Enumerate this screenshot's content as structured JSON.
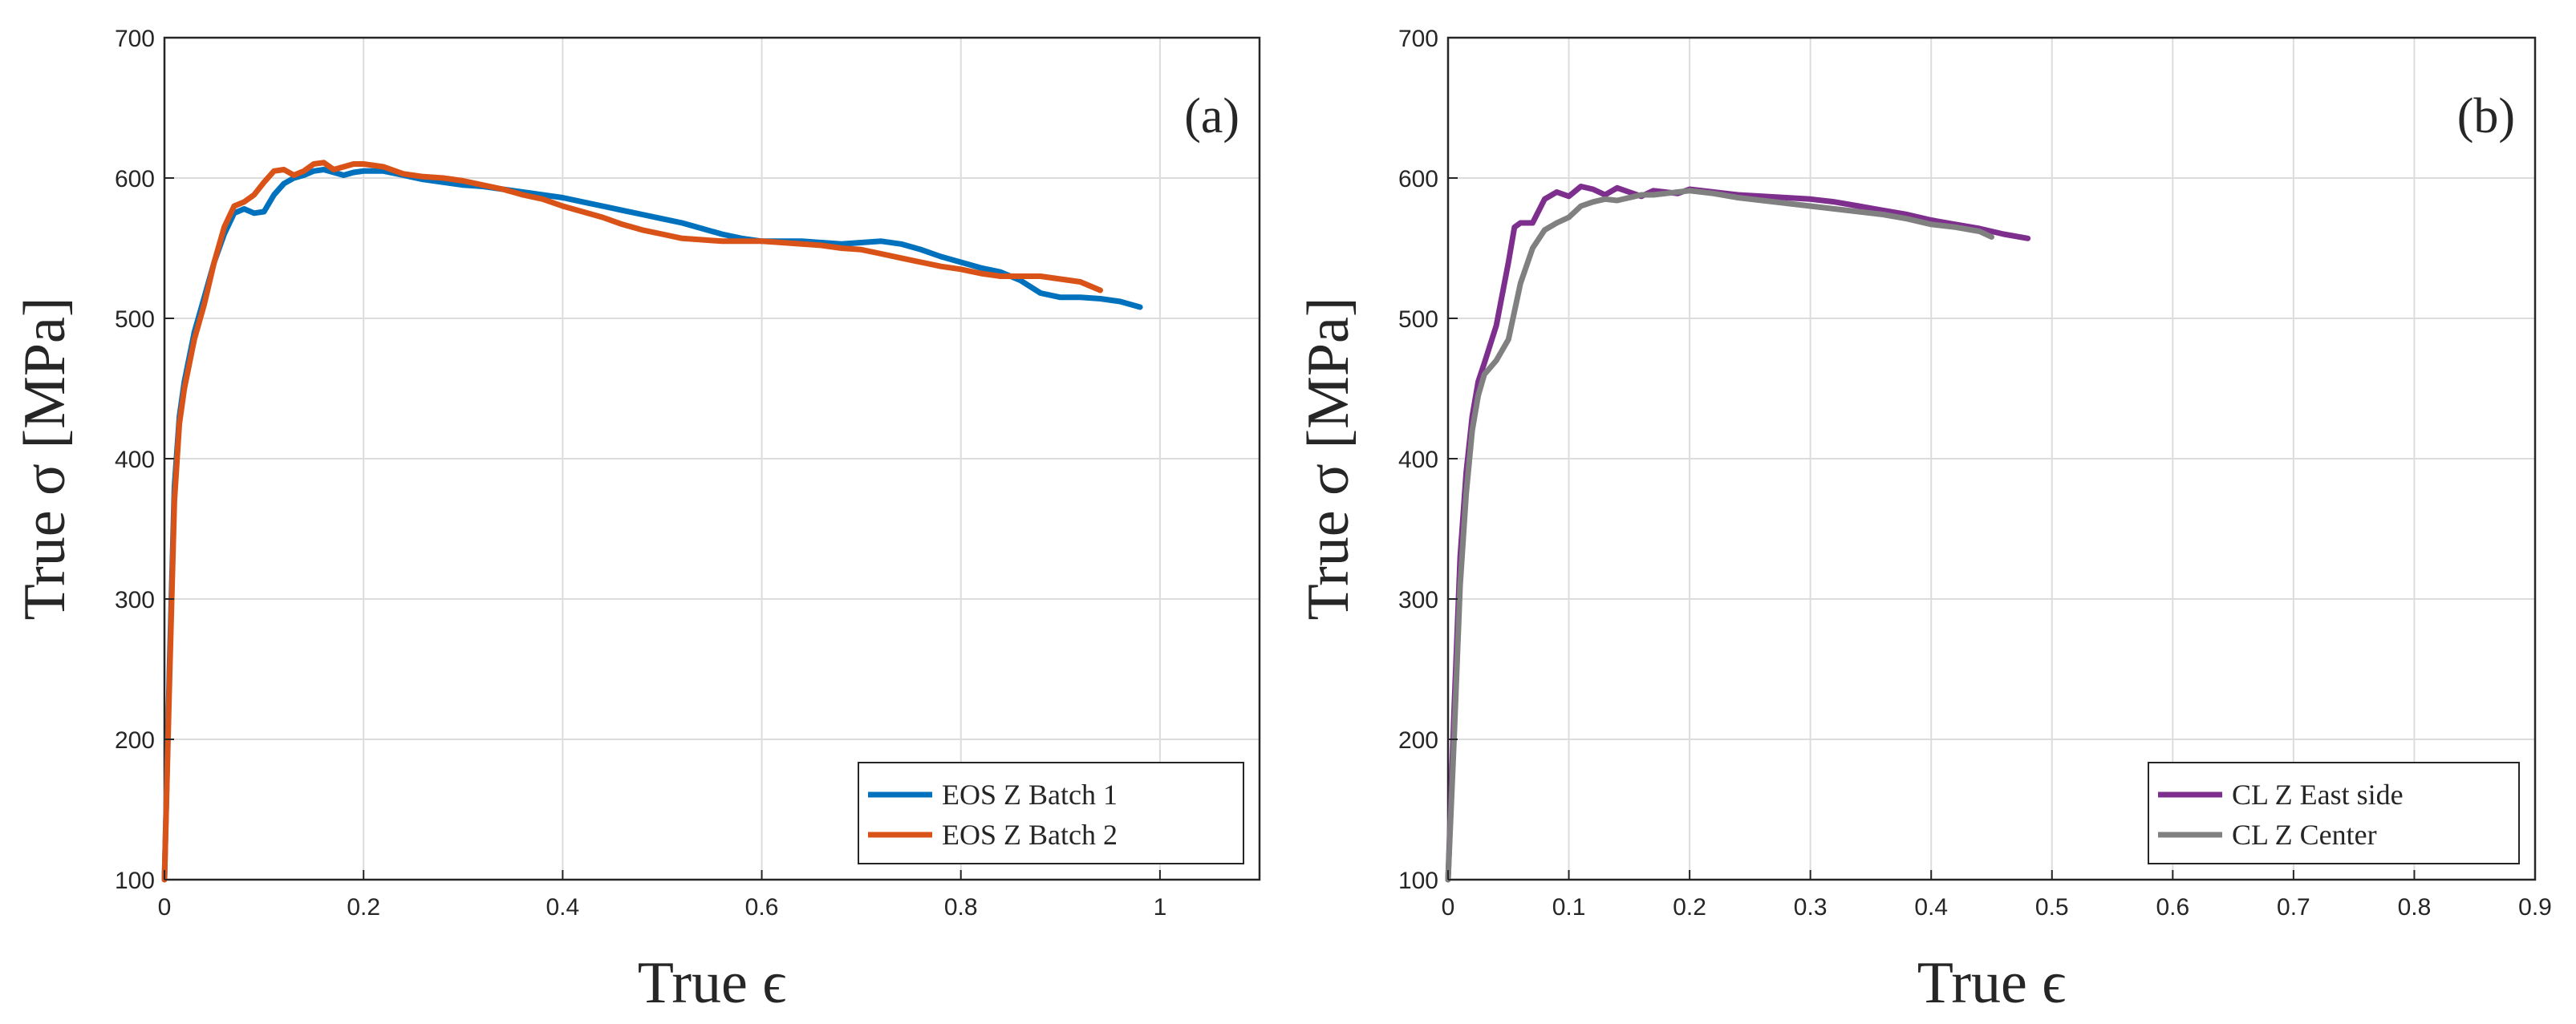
{
  "chart_data": [
    {
      "type": "line",
      "panel_label": "(a)",
      "xlabel": "True ϵ",
      "ylabel": "True σ [MPa]",
      "xlim": [
        0,
        1.1
      ],
      "ylim": [
        100,
        700
      ],
      "xticks": [
        0,
        0.2,
        0.4,
        0.6,
        0.8,
        1
      ],
      "xtick_labels": [
        "0",
        "0.2",
        "0.4",
        "0.6",
        "0.8",
        "1"
      ],
      "yticks": [
        100,
        200,
        300,
        400,
        500,
        600,
        700
      ],
      "ytick_labels": [
        "100",
        "200",
        "300",
        "400",
        "500",
        "600",
        "700"
      ],
      "grid": true,
      "legend_position": "bottom-right",
      "series": [
        {
          "name": "EOS Z Batch 1",
          "color": "#0072BD",
          "x": [
            0,
            0.005,
            0.01,
            0.015,
            0.02,
            0.03,
            0.04,
            0.05,
            0.06,
            0.07,
            0.08,
            0.09,
            0.1,
            0.11,
            0.12,
            0.13,
            0.14,
            0.15,
            0.16,
            0.17,
            0.18,
            0.19,
            0.2,
            0.22,
            0.24,
            0.26,
            0.28,
            0.3,
            0.32,
            0.34,
            0.36,
            0.38,
            0.4,
            0.42,
            0.44,
            0.46,
            0.48,
            0.5,
            0.52,
            0.54,
            0.56,
            0.58,
            0.6,
            0.62,
            0.64,
            0.66,
            0.68,
            0.7,
            0.72,
            0.74,
            0.76,
            0.78,
            0.8,
            0.82,
            0.84,
            0.86,
            0.88,
            0.9,
            0.92,
            0.94,
            0.96,
            0.98
          ],
          "y": [
            100,
            250,
            380,
            430,
            455,
            490,
            515,
            540,
            560,
            575,
            578,
            575,
            576,
            588,
            596,
            600,
            602,
            605,
            606,
            604,
            602,
            604,
            605,
            605,
            602,
            599,
            597,
            595,
            594,
            592,
            590,
            588,
            586,
            583,
            580,
            577,
            574,
            571,
            568,
            564,
            560,
            557,
            555,
            555,
            555,
            554,
            553,
            554,
            555,
            553,
            549,
            544,
            540,
            536,
            533,
            527,
            518,
            515,
            515,
            514,
            512,
            508
          ]
        },
        {
          "name": "EOS Z Batch 2",
          "color": "#D95319",
          "x": [
            0,
            0.005,
            0.01,
            0.015,
            0.02,
            0.03,
            0.04,
            0.05,
            0.06,
            0.07,
            0.08,
            0.09,
            0.1,
            0.11,
            0.12,
            0.13,
            0.14,
            0.15,
            0.16,
            0.17,
            0.18,
            0.19,
            0.2,
            0.22,
            0.24,
            0.26,
            0.28,
            0.3,
            0.32,
            0.34,
            0.36,
            0.38,
            0.4,
            0.42,
            0.44,
            0.46,
            0.48,
            0.5,
            0.52,
            0.54,
            0.56,
            0.58,
            0.6,
            0.62,
            0.64,
            0.66,
            0.68,
            0.7,
            0.72,
            0.74,
            0.76,
            0.78,
            0.8,
            0.82,
            0.84,
            0.86,
            0.88,
            0.9,
            0.92,
            0.94
          ],
          "y": [
            100,
            240,
            370,
            425,
            450,
            485,
            510,
            540,
            565,
            580,
            583,
            588,
            597,
            605,
            606,
            602,
            605,
            610,
            611,
            606,
            608,
            610,
            610,
            608,
            603,
            601,
            600,
            598,
            595,
            592,
            588,
            585,
            580,
            576,
            572,
            567,
            563,
            560,
            557,
            556,
            555,
            555,
            555,
            554,
            553,
            552,
            550,
            549,
            546,
            543,
            540,
            537,
            535,
            532,
            530,
            530,
            530,
            528,
            526,
            520
          ]
        }
      ]
    },
    {
      "type": "line",
      "panel_label": "(b)",
      "xlabel": "True ϵ",
      "ylabel": "True σ [MPa]",
      "xlim": [
        0,
        0.9
      ],
      "ylim": [
        100,
        700
      ],
      "xticks": [
        0,
        0.1,
        0.2,
        0.3,
        0.4,
        0.5,
        0.6,
        0.7,
        0.8,
        0.9
      ],
      "xtick_labels": [
        "0",
        "0.1",
        "0.2",
        "0.3",
        "0.4",
        "0.5",
        "0.6",
        "0.7",
        "0.8",
        "0.9"
      ],
      "yticks": [
        100,
        200,
        300,
        400,
        500,
        600,
        700
      ],
      "ytick_labels": [
        "100",
        "200",
        "300",
        "400",
        "500",
        "600",
        "700"
      ],
      "grid": true,
      "legend_position": "bottom-right",
      "series": [
        {
          "name": "CL Z East side",
          "color": "#7E2F8E",
          "x": [
            0,
            0.005,
            0.01,
            0.015,
            0.02,
            0.025,
            0.03,
            0.04,
            0.05,
            0.055,
            0.06,
            0.07,
            0.08,
            0.09,
            0.1,
            0.11,
            0.12,
            0.13,
            0.14,
            0.15,
            0.16,
            0.17,
            0.18,
            0.19,
            0.2,
            0.22,
            0.24,
            0.26,
            0.28,
            0.3,
            0.32,
            0.34,
            0.36,
            0.38,
            0.4,
            0.42,
            0.44,
            0.46,
            0.48
          ],
          "y": [
            100,
            220,
            330,
            390,
            430,
            455,
            468,
            495,
            540,
            565,
            568,
            568,
            585,
            590,
            587,
            594,
            592,
            588,
            593,
            590,
            587,
            591,
            590,
            589,
            592,
            590,
            588,
            587,
            586,
            585,
            583,
            580,
            577,
            574,
            570,
            567,
            564,
            560,
            557
          ]
        },
        {
          "name": "CL Z Center",
          "color": "#808080",
          "x": [
            0,
            0.005,
            0.01,
            0.015,
            0.02,
            0.025,
            0.03,
            0.04,
            0.05,
            0.06,
            0.07,
            0.08,
            0.09,
            0.1,
            0.11,
            0.12,
            0.13,
            0.14,
            0.15,
            0.16,
            0.17,
            0.18,
            0.19,
            0.2,
            0.22,
            0.24,
            0.26,
            0.28,
            0.3,
            0.32,
            0.34,
            0.36,
            0.38,
            0.4,
            0.42,
            0.44,
            0.45
          ],
          "y": [
            100,
            200,
            310,
            375,
            420,
            445,
            460,
            470,
            485,
            525,
            550,
            563,
            568,
            572,
            580,
            583,
            585,
            584,
            586,
            588,
            588,
            589,
            590,
            591,
            589,
            586,
            584,
            582,
            580,
            578,
            576,
            574,
            571,
            567,
            565,
            562,
            558
          ]
        }
      ]
    }
  ]
}
